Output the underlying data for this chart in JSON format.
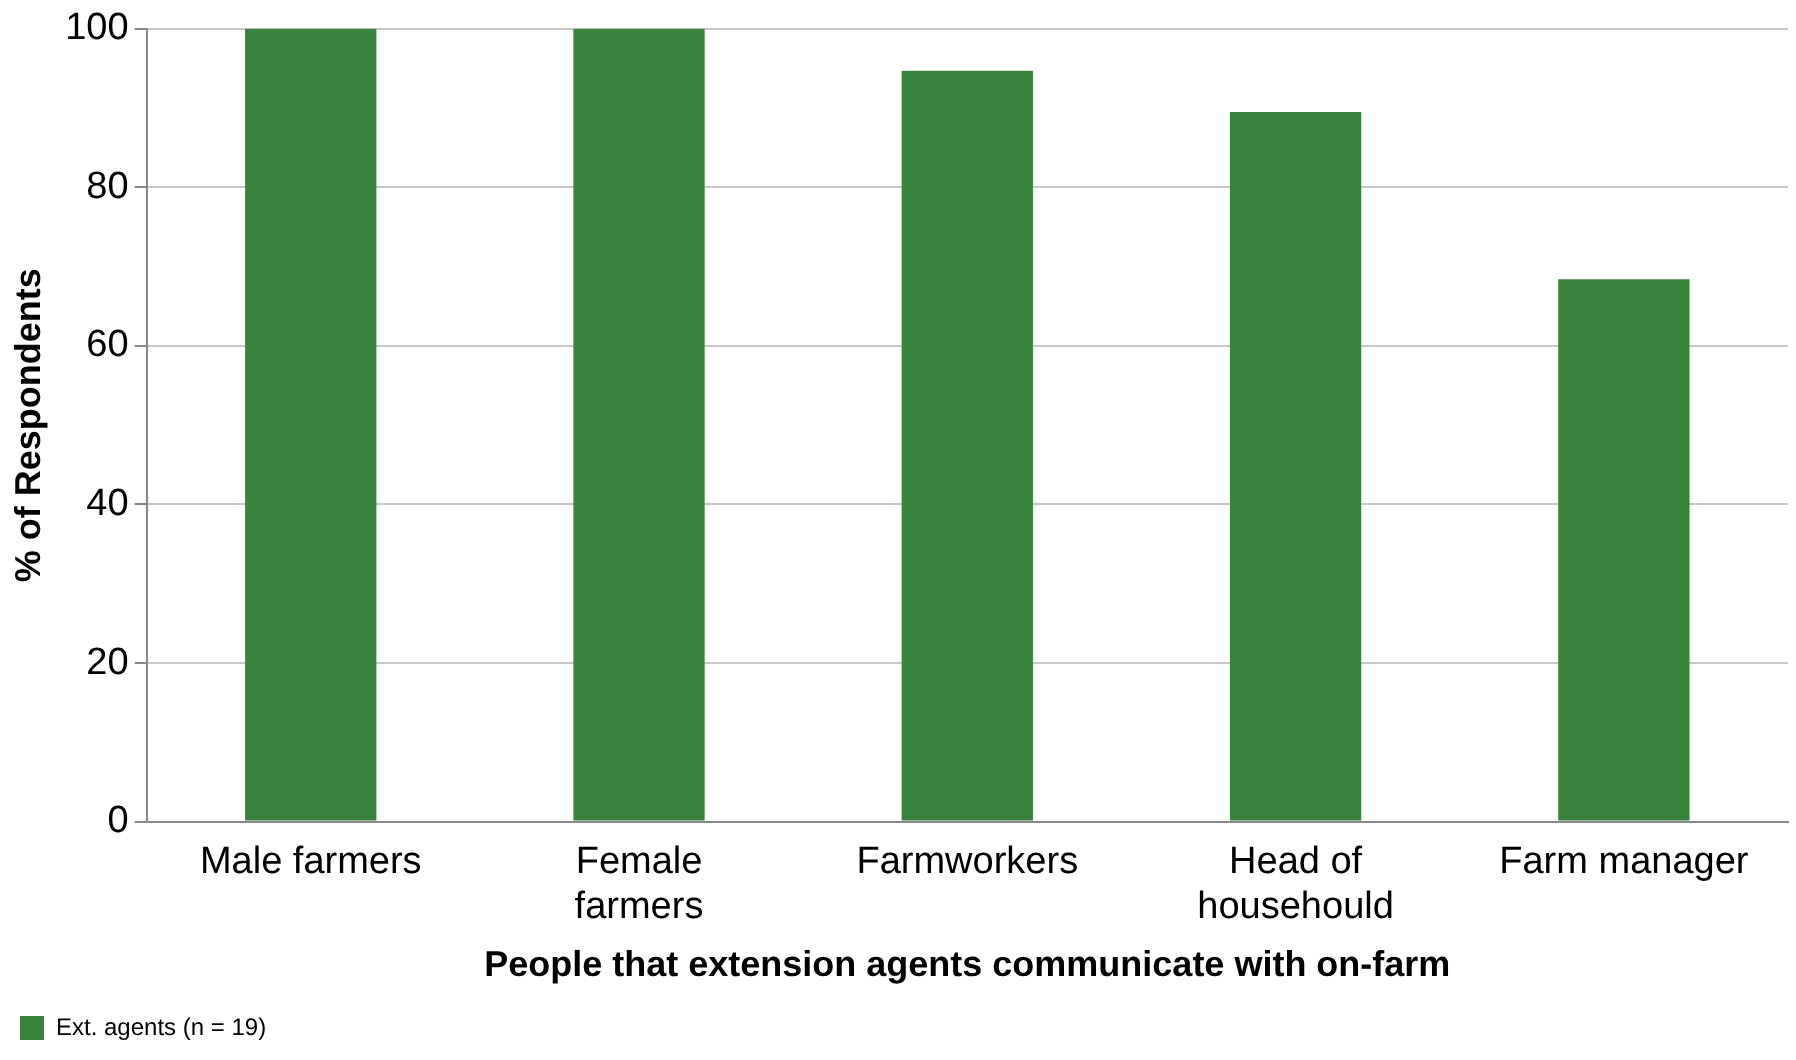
{
  "chart_data": {
    "type": "bar",
    "xlabel": "People that extension agents communicate with on-farm",
    "ylabel": "% of Respondents",
    "categories": [
      "Male farmers",
      "Female farmers",
      "Farmworkers",
      "Head of househould",
      "Farm manager"
    ],
    "series": [
      {
        "name": "Ext. agents (n = 19)",
        "color": "#3a833c",
        "values": [
          100,
          100,
          94.7,
          89.5,
          68.4
        ]
      }
    ],
    "ylim": [
      0,
      100
    ],
    "yticks": [
      0,
      20,
      40,
      60,
      80,
      100
    ],
    "grid": "y",
    "legend": "bottom left"
  }
}
